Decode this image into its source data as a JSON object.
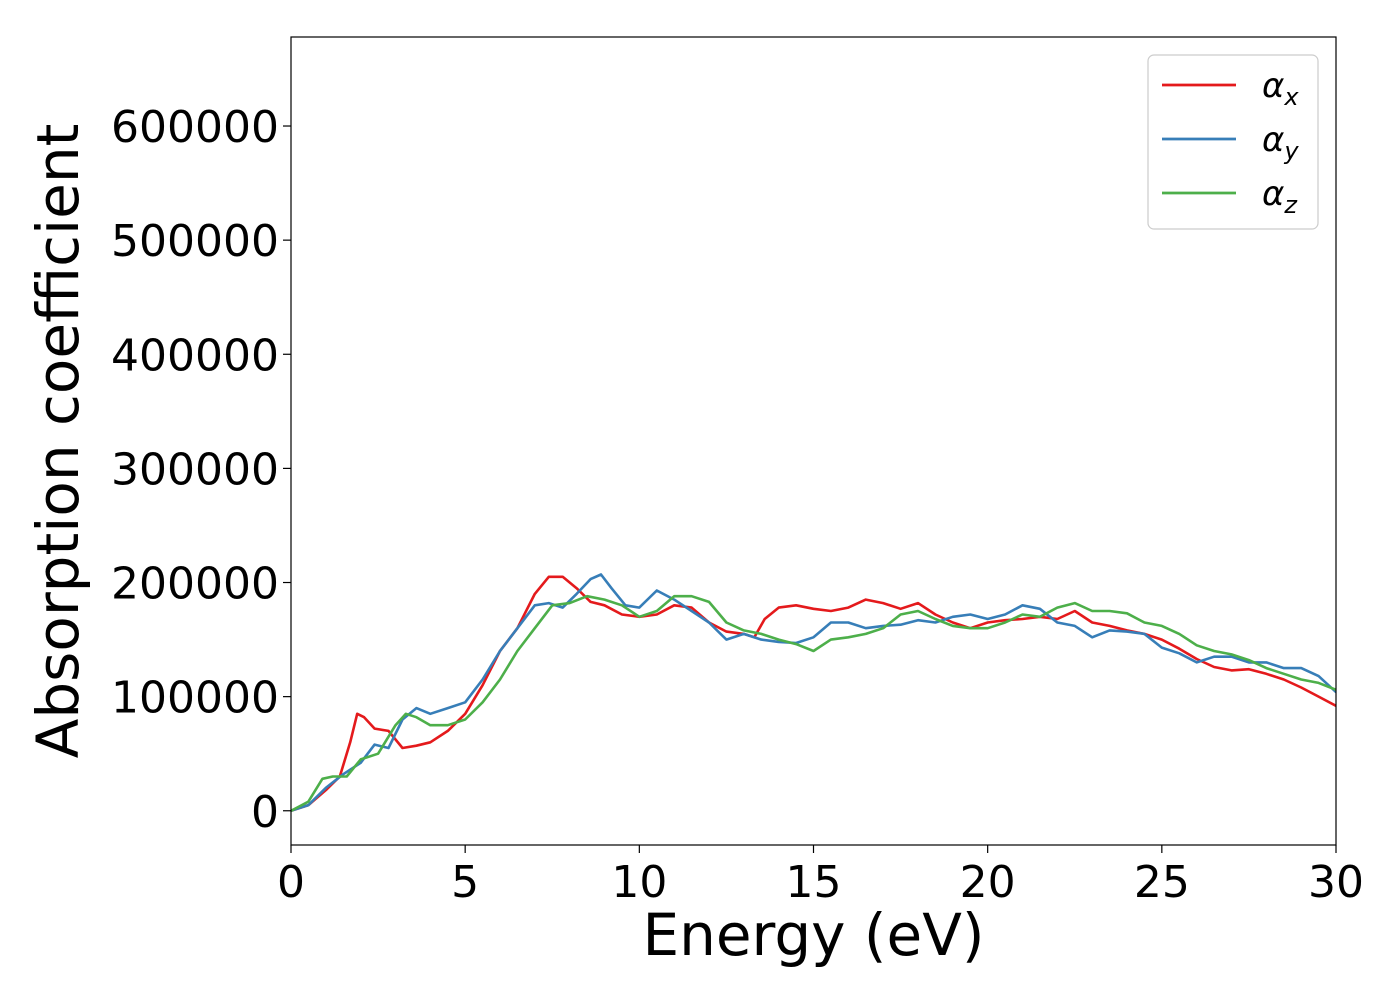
{
  "chart_data": {
    "type": "line",
    "title": "",
    "xlabel": "Energy (eV)",
    "ylabel": "Absorption coefficient",
    "xlim": [
      0,
      30
    ],
    "ylim": [
      -30000,
      678000
    ],
    "xticks": [
      0,
      5,
      10,
      15,
      20,
      25,
      30
    ],
    "yticks": [
      0,
      100000,
      200000,
      300000,
      400000,
      500000,
      600000
    ],
    "grid": false,
    "legend_position": "top-right",
    "series": [
      {
        "name": "α",
        "subscript": "x",
        "color": "#e41a1c",
        "x": [
          0,
          0.5,
          1.0,
          1.4,
          1.7,
          1.9,
          2.1,
          2.4,
          2.8,
          3.2,
          3.6,
          4.0,
          4.5,
          5.0,
          5.5,
          6.0,
          6.5,
          7.0,
          7.4,
          7.8,
          8.2,
          8.6,
          9.0,
          9.5,
          10.0,
          10.5,
          11.0,
          11.5,
          12.0,
          12.5,
          13.0,
          13.3,
          13.6,
          14.0,
          14.5,
          15.0,
          15.5,
          16.0,
          16.5,
          17.0,
          17.5,
          18.0,
          18.5,
          19.0,
          19.5,
          20.0,
          20.5,
          21.0,
          21.5,
          22.0,
          22.5,
          23.0,
          23.5,
          24.0,
          24.5,
          25.0,
          25.5,
          26.0,
          26.5,
          27.0,
          27.5,
          28.0,
          28.5,
          29.0,
          29.5,
          30.0
        ],
        "y": [
          0,
          5000,
          18000,
          30000,
          60000,
          85000,
          82000,
          72000,
          70000,
          55000,
          57000,
          60000,
          70000,
          85000,
          110000,
          140000,
          160000,
          190000,
          205000,
          205000,
          195000,
          183000,
          180000,
          172000,
          170000,
          172000,
          180000,
          178000,
          165000,
          157000,
          155000,
          152000,
          168000,
          178000,
          180000,
          177000,
          175000,
          178000,
          185000,
          182000,
          177000,
          182000,
          172000,
          165000,
          160000,
          165000,
          167000,
          168000,
          170000,
          168000,
          175000,
          165000,
          162000,
          158000,
          155000,
          150000,
          142000,
          133000,
          126000,
          123000,
          124000,
          120000,
          115000,
          108000,
          100000,
          92000
        ]
      },
      {
        "name": "α",
        "subscript": "y",
        "color": "#377eb8",
        "x": [
          0,
          0.5,
          1.0,
          1.5,
          2.0,
          2.4,
          2.8,
          3.2,
          3.6,
          4.0,
          4.5,
          5.0,
          5.5,
          6.0,
          6.5,
          7.0,
          7.4,
          7.8,
          8.2,
          8.6,
          8.9,
          9.2,
          9.6,
          10.0,
          10.5,
          11.0,
          11.5,
          12.0,
          12.5,
          13.0,
          13.5,
          14.0,
          14.5,
          15.0,
          15.5,
          16.0,
          16.5,
          17.0,
          17.5,
          18.0,
          18.5,
          19.0,
          19.5,
          20.0,
          20.5,
          21.0,
          21.5,
          22.0,
          22.5,
          23.0,
          23.5,
          24.0,
          24.5,
          25.0,
          25.5,
          26.0,
          26.5,
          27.0,
          27.5,
          28.0,
          28.5,
          29.0,
          29.5,
          30.0
        ],
        "y": [
          0,
          5000,
          20000,
          32000,
          42000,
          58000,
          55000,
          80000,
          90000,
          85000,
          90000,
          95000,
          115000,
          140000,
          160000,
          180000,
          182000,
          178000,
          190000,
          203000,
          207000,
          195000,
          180000,
          178000,
          193000,
          185000,
          175000,
          165000,
          150000,
          155000,
          150000,
          148000,
          147000,
          152000,
          165000,
          165000,
          160000,
          162000,
          163000,
          167000,
          165000,
          170000,
          172000,
          168000,
          172000,
          180000,
          177000,
          165000,
          162000,
          152000,
          158000,
          157000,
          155000,
          143000,
          138000,
          130000,
          135000,
          135000,
          130000,
          130000,
          125000,
          125000,
          118000,
          104000
        ]
      },
      {
        "name": "α",
        "subscript": "z",
        "color": "#4daf4a",
        "x": [
          0,
          0.5,
          0.9,
          1.2,
          1.6,
          2.0,
          2.5,
          3.0,
          3.3,
          3.6,
          4.0,
          4.5,
          5.0,
          5.5,
          6.0,
          6.5,
          7.0,
          7.5,
          8.0,
          8.5,
          9.0,
          9.5,
          10.0,
          10.5,
          11.0,
          11.5,
          12.0,
          12.5,
          13.0,
          13.5,
          14.0,
          14.5,
          15.0,
          15.5,
          16.0,
          16.5,
          17.0,
          17.5,
          18.0,
          18.5,
          19.0,
          19.5,
          20.0,
          20.5,
          21.0,
          21.5,
          22.0,
          22.5,
          23.0,
          23.5,
          24.0,
          24.5,
          25.0,
          25.5,
          26.0,
          26.5,
          27.0,
          27.5,
          28.0,
          28.5,
          29.0,
          29.5,
          30.0
        ],
        "y": [
          0,
          8000,
          28000,
          30000,
          30000,
          45000,
          50000,
          75000,
          85000,
          82000,
          75000,
          75000,
          80000,
          95000,
          115000,
          140000,
          160000,
          180000,
          182000,
          188000,
          185000,
          180000,
          170000,
          175000,
          188000,
          188000,
          183000,
          165000,
          158000,
          155000,
          150000,
          146000,
          140000,
          150000,
          152000,
          155000,
          160000,
          172000,
          175000,
          168000,
          162000,
          160000,
          160000,
          165000,
          172000,
          170000,
          178000,
          182000,
          175000,
          175000,
          173000,
          165000,
          162000,
          155000,
          145000,
          140000,
          137000,
          132000,
          125000,
          120000,
          115000,
          112000,
          106000
        ]
      }
    ]
  }
}
